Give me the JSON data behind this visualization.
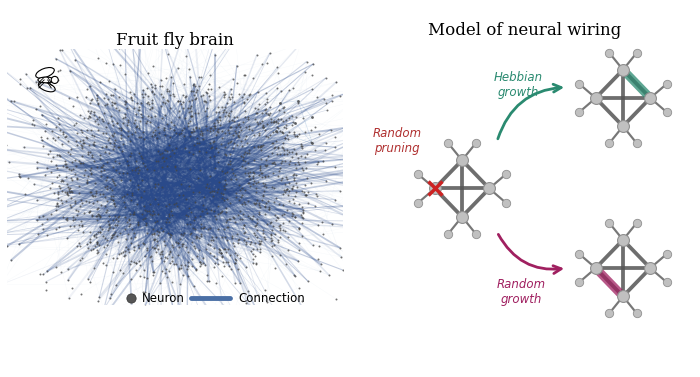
{
  "title_left": "Fruit fly brain",
  "title_right": "Model of neural wiring",
  "bg_color": "#ffffff",
  "network_node_color": "#444444",
  "network_edge_color_dark": "#2a4a8a",
  "network_edge_color_light": "#8aaed4",
  "legend_neuron_color": "#555555",
  "legend_connection_color": "#4a6fa5",
  "hebbian_color": "#2a8a70",
  "random_growth_color": "#a02060",
  "pruning_color": "#cc2222",
  "node_diagram_color": "#c0c0c0",
  "edge_diagram_color": "#555555",
  "hebbian_label": "Hebbian\ngrowth",
  "random_growth_label": "Random\ngrowth",
  "random_pruning_label": "Random\npruning"
}
